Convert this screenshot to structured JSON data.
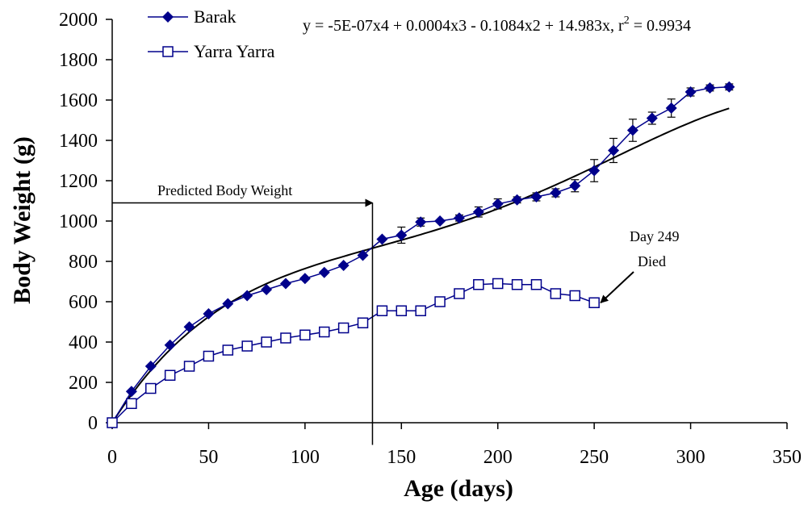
{
  "chart_data": {
    "type": "line",
    "xlabel": "Age (days)",
    "ylabel": "Body Weight (g)",
    "xlim": [
      0,
      350
    ],
    "ylim": [
      0,
      2000
    ],
    "xticks": [
      0,
      50,
      100,
      150,
      200,
      250,
      300,
      350
    ],
    "yticks": [
      0,
      200,
      400,
      600,
      800,
      1000,
      1200,
      1400,
      1600,
      1800,
      2000
    ],
    "grid": false,
    "legend_position": "top-left",
    "series": [
      {
        "name": "Barak",
        "marker": "filled-diamond",
        "color": "#00008B",
        "x": [
          0,
          10,
          20,
          30,
          40,
          50,
          60,
          70,
          80,
          90,
          100,
          110,
          120,
          130,
          140,
          150,
          160,
          170,
          180,
          190,
          200,
          210,
          220,
          230,
          240,
          250,
          260,
          270,
          280,
          290,
          300,
          310,
          320
        ],
        "y": [
          0,
          155,
          280,
          385,
          475,
          540,
          590,
          630,
          660,
          690,
          715,
          745,
          780,
          830,
          910,
          930,
          995,
          1000,
          1015,
          1045,
          1085,
          1105,
          1120,
          1140,
          1175,
          1250,
          1350,
          1450,
          1510,
          1560,
          1640,
          1660,
          1665
        ],
        "error": [
          0,
          0,
          0,
          0,
          0,
          0,
          0,
          0,
          0,
          0,
          0,
          0,
          0,
          0,
          0,
          40,
          20,
          0,
          15,
          25,
          25,
          15,
          20,
          20,
          30,
          55,
          60,
          55,
          30,
          45,
          20,
          15,
          15
        ]
      },
      {
        "name": "Yarra Yarra",
        "marker": "open-square",
        "color": "#00008B",
        "x": [
          0,
          10,
          20,
          30,
          40,
          50,
          60,
          70,
          80,
          90,
          100,
          110,
          120,
          130,
          140,
          150,
          160,
          170,
          180,
          190,
          200,
          210,
          220,
          230,
          240,
          250
        ],
        "y": [
          0,
          95,
          170,
          235,
          280,
          330,
          360,
          380,
          400,
          420,
          435,
          450,
          470,
          495,
          555,
          555,
          555,
          600,
          640,
          685,
          690,
          685,
          685,
          640,
          630,
          595
        ]
      }
    ],
    "trendline": {
      "label": "y = -5E-07x4 + 0.0004x3 - 0.1084x2 + 14.983x, r",
      "label_sup": "2",
      "label_tail": " = 0.9934",
      "coefficients": [
        0,
        14.983,
        -0.1084,
        0.0004,
        -5e-07
      ],
      "x_range": [
        0,
        320
      ]
    },
    "annotations": {
      "predicted": "Predicted Body Weight",
      "predicted_x": 135,
      "death_day": "Day 249",
      "death_text": "Died"
    }
  }
}
